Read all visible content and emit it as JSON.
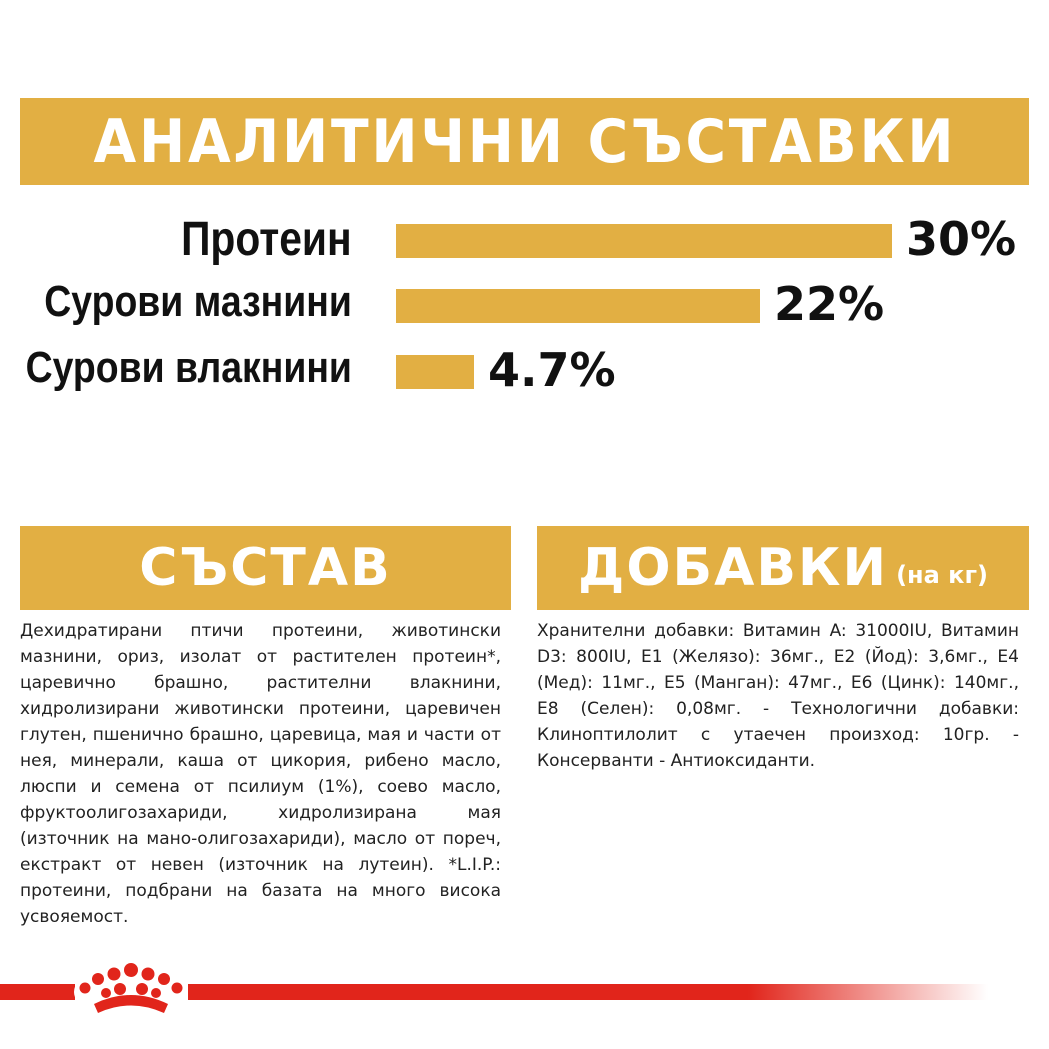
{
  "header": {
    "title": "АНАЛИТИЧНИ СЪСТАВКИ"
  },
  "chart_data": {
    "type": "bar",
    "orientation": "horizontal",
    "categories": [
      "Протеин",
      "Сурови мазнини",
      "Сурови влакнини"
    ],
    "values": [
      30,
      22,
      4.7
    ],
    "value_labels": [
      "30%",
      "22%",
      "4.7%"
    ],
    "xlim": [
      0,
      30
    ],
    "bar_color": "#E2AF43"
  },
  "composition": {
    "title": "СЪСТАВ",
    "text": "Дехидратирани птичи протеини, животински мазнини, ориз, изолат от растителен протеин*, царевично брашно, растителни влакнини, хидролизирани животински протеини, царевичен глутен, пшенично брашно, царевица, мая и части от нея, минерали, каша от цикория, рибено масло, люспи и семена от псилиум (1%), соево масло, фруктоолигозахариди, хидролизирана мая (източник на мано-олигозахариди), масло от пореч, екстракт от невен (източник на лутеин). *L.I.P.: протеини, подбрани на базата на много висока усвояемост."
  },
  "additives": {
    "title": "ДОБАВКИ",
    "subtitle": "(на кг)",
    "text": "Хранителни добавки: Витамин A: 31000IU, Витамин D3: 800IU, E1 (Желязо): 36мг., E2 (Йод): 3,6мг., E4 (Мед): 11мг., E5 (Манган): 47мг., E6 (Цинк): 140мг., E8 (Селен): 0,08мг. - Технологични добавки: Клиноптилолит с утаечен произход: 10гр. - Консерванти - Антиоксиданти."
  },
  "colors": {
    "gold": "#E2AF43",
    "brand_red": "#E1251B"
  },
  "logo": {
    "icon": "royal-canin-crown-icon"
  }
}
